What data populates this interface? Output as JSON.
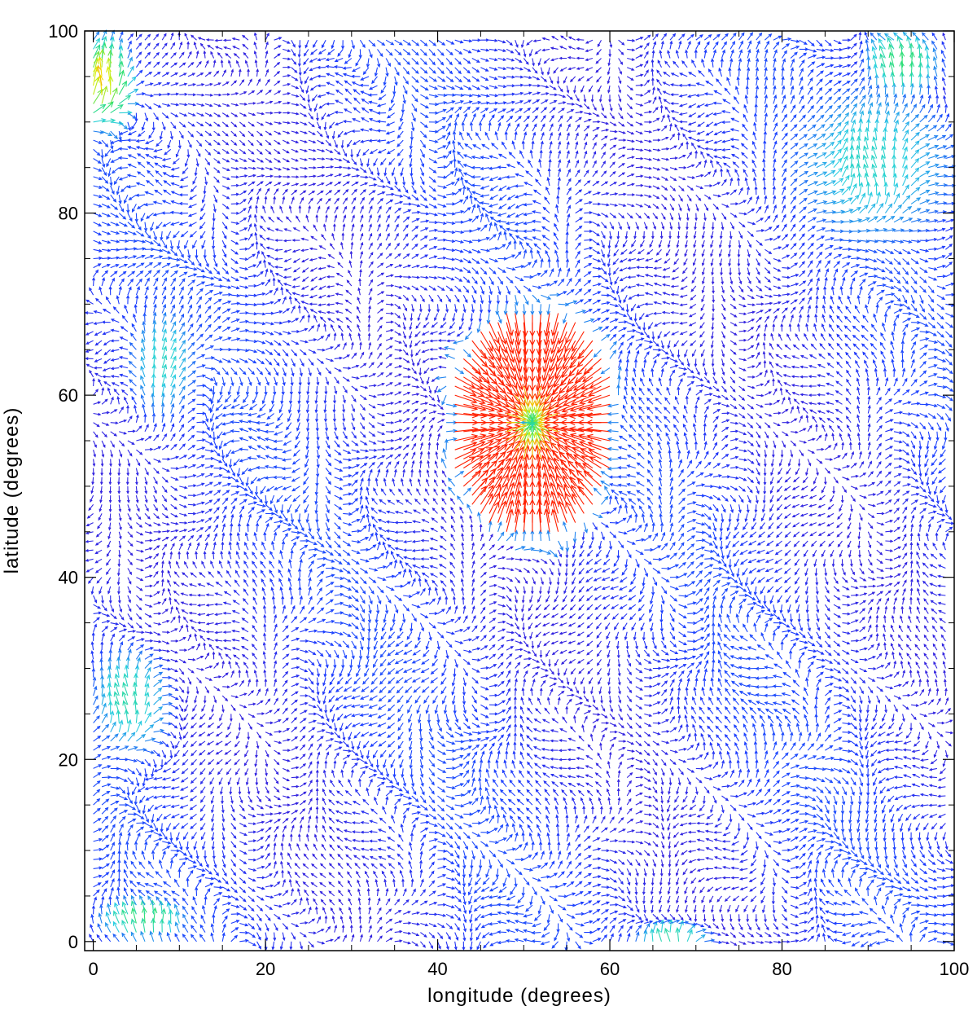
{
  "chart_data": {
    "type": "quiver",
    "xlabel": "longitude (degrees)",
    "ylabel": "latitude (degrees)",
    "xlim": [
      -1,
      100
    ],
    "ylim": [
      -1,
      100
    ],
    "x_ticks": [
      0,
      20,
      40,
      60,
      80,
      100
    ],
    "y_ticks": [
      0,
      20,
      40,
      60,
      80,
      100
    ],
    "grid_spacing_deg": 1,
    "colormap": "rainbow (violet = low speed, red = high speed)",
    "colors": {
      "low": "#5a00b0",
      "mid_low": "#1a3cff",
      "mid": "#2ad0e0",
      "mid_high": "#30e070",
      "high_mid": "#f0f000",
      "high": "#ff2000"
    },
    "features": [
      {
        "kind": "divergent_source",
        "center": [
          51,
          57
        ],
        "radius": [
          10,
          13
        ],
        "peak_speed": 1.0
      },
      {
        "kind": "strong_flow",
        "center": [
          1,
          94
        ],
        "radius": [
          4,
          6
        ],
        "peak_speed": 0.85
      },
      {
        "kind": "strong_flow",
        "center": [
          94,
          96
        ],
        "radius": [
          6,
          5
        ],
        "peak_speed": 0.6
      },
      {
        "kind": "strong_flow",
        "center": [
          6,
          2
        ],
        "radius": [
          7,
          3
        ],
        "peak_speed": 0.6
      },
      {
        "kind": "moderate_flow",
        "center": [
          4,
          26
        ],
        "radius": [
          6,
          8
        ],
        "peak_speed": 0.5
      },
      {
        "kind": "moderate_flow",
        "center": [
          90,
          85
        ],
        "radius": [
          14,
          13
        ],
        "peak_speed": 0.45
      },
      {
        "kind": "moderate_flow",
        "center": [
          8,
          63
        ],
        "radius": [
          5,
          9
        ],
        "peak_speed": 0.45
      },
      {
        "kind": "moderate_flow",
        "center": [
          67,
          0
        ],
        "radius": [
          6,
          3
        ],
        "peak_speed": 0.5
      }
    ]
  }
}
